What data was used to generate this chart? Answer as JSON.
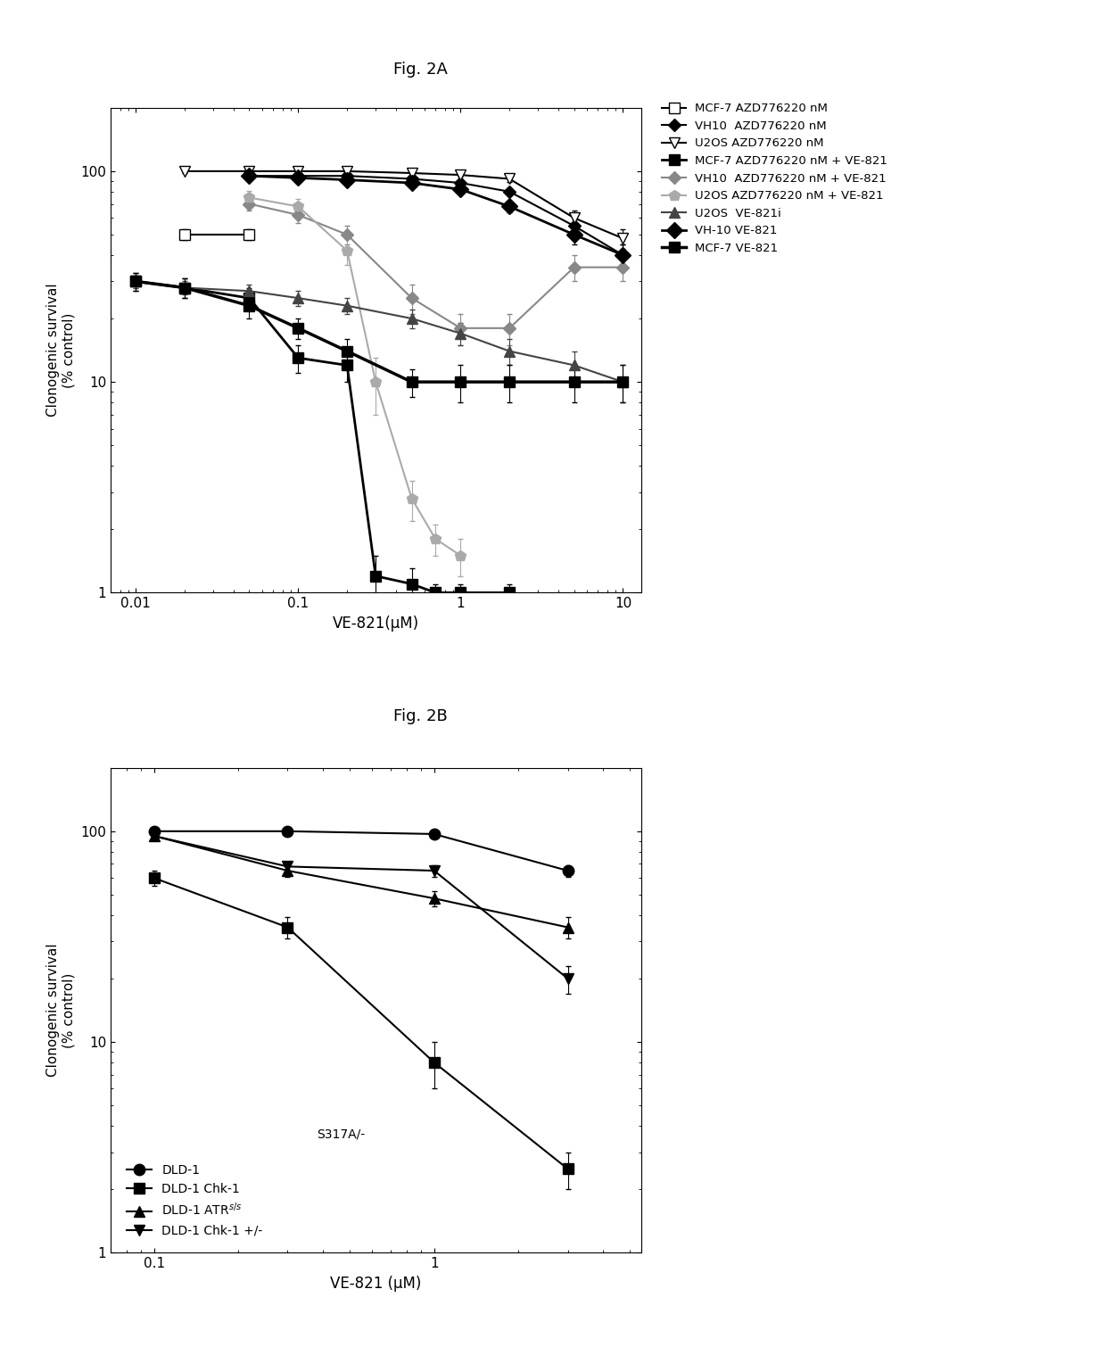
{
  "figA_title": "Fig. 2A",
  "figB_title": "Fig. 2B",
  "figA_xlabel": "VE-821(μM)",
  "figB_xlabel": "VE-821 (μM)",
  "ylabel": "Clonogenic survival\n(% control)",
  "figA_series": [
    {
      "label": "MCF-7 AZD776220 nM",
      "color": "#000000",
      "marker": "s",
      "mfc": "white",
      "mec": "black",
      "ms": 8,
      "lw": 1.5,
      "x": [
        0.02,
        0.05
      ],
      "y": [
        50,
        50
      ],
      "yerr": [
        3,
        3
      ]
    },
    {
      "label": "VH10  AZD776220 nM",
      "color": "#000000",
      "marker": "D",
      "mfc": "black",
      "mec": "black",
      "ms": 7,
      "lw": 1.5,
      "x": [
        0.05,
        0.1,
        0.2,
        0.5,
        1.0,
        2.0,
        5.0,
        10.0
      ],
      "y": [
        95,
        95,
        95,
        92,
        88,
        80,
        55,
        40
      ],
      "yerr": [
        3,
        2,
        2,
        2,
        3,
        3,
        5,
        5
      ]
    },
    {
      "label": "U2OS AZD776220 nM",
      "color": "#000000",
      "marker": "v",
      "mfc": "white",
      "mec": "black",
      "ms": 8,
      "lw": 1.5,
      "x": [
        0.02,
        0.05,
        0.1,
        0.2,
        0.5,
        1.0,
        2.0,
        5.0,
        10.0
      ],
      "y": [
        100,
        100,
        100,
        100,
        98,
        96,
        92,
        60,
        48
      ],
      "yerr": [
        2,
        1,
        1,
        1,
        2,
        2,
        3,
        5,
        5
      ]
    },
    {
      "label": "MCF-7 AZD776220 nM + VE-821",
      "color": "#000000",
      "marker": "s",
      "mfc": "black",
      "mec": "black",
      "ms": 8,
      "lw": 2.0,
      "x": [
        0.01,
        0.02,
        0.05,
        0.1,
        0.2,
        0.3,
        0.5,
        0.7,
        1.0,
        2.0
      ],
      "y": [
        30,
        28,
        25,
        13,
        12,
        1.2,
        1.1,
        1.0,
        1.0,
        1.0
      ],
      "yerr": [
        3,
        3,
        3,
        2,
        2,
        0.3,
        0.2,
        0.1,
        0.1,
        0.1
      ]
    },
    {
      "label": "VH10  AZD776220 nM + VE-821",
      "color": "#888888",
      "marker": "D",
      "mfc": "#888888",
      "mec": "#888888",
      "ms": 7,
      "lw": 1.5,
      "x": [
        0.05,
        0.1,
        0.2,
        0.5,
        1.0,
        2.0,
        5.0,
        10.0
      ],
      "y": [
        70,
        62,
        50,
        25,
        18,
        18,
        35,
        35
      ],
      "yerr": [
        5,
        5,
        5,
        4,
        3,
        3,
        5,
        5
      ]
    },
    {
      "label": "U2OS AZD776220 nM + VE-821",
      "color": "#aaaaaa",
      "marker": "p",
      "mfc": "#aaaaaa",
      "mec": "#aaaaaa",
      "ms": 9,
      "lw": 1.5,
      "x": [
        0.05,
        0.1,
        0.2,
        0.3,
        0.5,
        0.7,
        1.0
      ],
      "y": [
        75,
        68,
        42,
        10,
        2.8,
        1.8,
        1.5
      ],
      "yerr": [
        6,
        6,
        6,
        3,
        0.6,
        0.3,
        0.3
      ]
    },
    {
      "label": "U2OS  VE-821i",
      "color": "#444444",
      "marker": "^",
      "mfc": "#444444",
      "mec": "#444444",
      "ms": 8,
      "lw": 1.5,
      "x": [
        0.01,
        0.02,
        0.05,
        0.1,
        0.2,
        0.5,
        1.0,
        2.0,
        5.0,
        10.0
      ],
      "y": [
        30,
        28,
        27,
        25,
        23,
        20,
        17,
        14,
        12,
        10
      ],
      "yerr": [
        2,
        2,
        2,
        2,
        2,
        2,
        2,
        2,
        2,
        2
      ]
    },
    {
      "label": "VH-10 VE-821",
      "color": "#000000",
      "marker": "D",
      "mfc": "black",
      "mec": "black",
      "ms": 9,
      "lw": 2.0,
      "x": [
        0.05,
        0.1,
        0.2,
        0.5,
        1.0,
        2.0,
        5.0,
        10.0
      ],
      "y": [
        95,
        93,
        91,
        88,
        82,
        68,
        50,
        40
      ],
      "yerr": [
        2,
        2,
        2,
        3,
        3,
        4,
        5,
        5
      ]
    },
    {
      "label": "MCF-7 VE-821",
      "color": "#000000",
      "marker": "s",
      "mfc": "black",
      "mec": "black",
      "ms": 9,
      "lw": 2.5,
      "x": [
        0.01,
        0.02,
        0.05,
        0.1,
        0.2,
        0.5,
        1.0,
        2.0,
        5.0,
        10.0
      ],
      "y": [
        30,
        28,
        23,
        18,
        14,
        10,
        10,
        10,
        10,
        10
      ],
      "yerr": [
        3,
        3,
        3,
        2,
        2,
        1.5,
        2,
        2,
        2,
        2
      ]
    }
  ],
  "figB_series": [
    {
      "label": "DLD-1",
      "color": "#000000",
      "marker": "o",
      "mfc": "black",
      "mec": "black",
      "ms": 9,
      "lw": 1.5,
      "x": [
        0.1,
        0.3,
        1.0,
        3.0
      ],
      "y": [
        100,
        100,
        97,
        65
      ],
      "yerr": [
        2,
        1,
        2,
        4
      ]
    },
    {
      "label": "DLD-1 Chk-1\nS317A/-",
      "color": "#000000",
      "marker": "s",
      "mfc": "black",
      "mec": "black",
      "ms": 9,
      "lw": 1.5,
      "x": [
        0.1,
        0.3,
        1.0,
        3.0
      ],
      "y": [
        60,
        35,
        8,
        2.5
      ],
      "yerr": [
        5,
        4,
        2,
        0.5
      ]
    },
    {
      "label": "DLD-1 ATR$^{s/s}$",
      "color": "#000000",
      "marker": "^",
      "mfc": "black",
      "mec": "black",
      "ms": 9,
      "lw": 1.5,
      "x": [
        0.1,
        0.3,
        1.0,
        3.0
      ],
      "y": [
        95,
        65,
        48,
        35
      ],
      "yerr": [
        3,
        4,
        4,
        4
      ]
    },
    {
      "label": "DLD-1 Chk-1 +/-",
      "color": "#000000",
      "marker": "v",
      "mfc": "black",
      "mec": "black",
      "ms": 9,
      "lw": 1.5,
      "x": [
        0.1,
        0.3,
        1.0,
        3.0
      ],
      "y": [
        95,
        68,
        65,
        20
      ],
      "yerr": [
        3,
        4,
        4,
        3
      ]
    }
  ]
}
